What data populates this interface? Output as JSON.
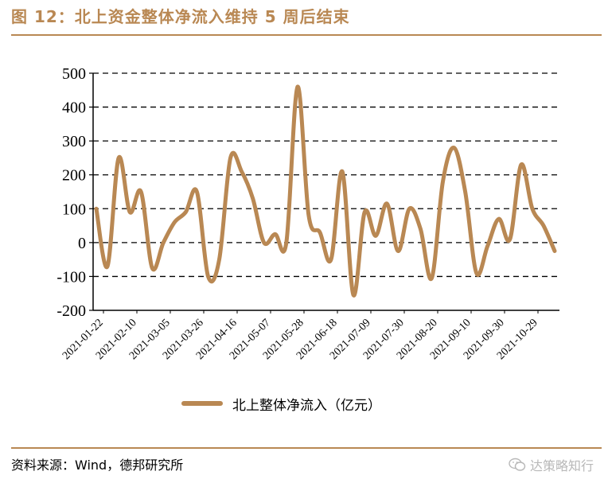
{
  "figure": {
    "title": "图 12：北上资金整体净流入维持 5 周后结束",
    "source": "资料来源：Wind，德邦研究所",
    "watermark": "达策略知行"
  },
  "colors": {
    "accent": "#B98853",
    "line": "#B98853",
    "grid": "#000000",
    "watermark": "#b8b8b8"
  },
  "icons": {
    "watermark": "wechat-icon"
  },
  "chart_data": {
    "type": "line",
    "ylim": [
      -200,
      500
    ],
    "yticks": [
      -200,
      -100,
      0,
      100,
      200,
      300,
      400,
      500
    ],
    "grid": true,
    "grid_style": "dashed horizontal",
    "legend_placement": "bottom-center",
    "x_tick_labels": [
      "2021-01-22",
      "2021-02-10",
      "2021-03-05",
      "2021-03-26",
      "2021-04-16",
      "2021-05-07",
      "2021-05-28",
      "2021-06-18",
      "2021-07-09",
      "2021-07-30",
      "2021-08-20",
      "2021-09-10",
      "2021-09-30",
      "2021-10-29"
    ],
    "series": [
      {
        "name": "北上整体净流入（亿元）",
        "values": [
          100,
          -70,
          250,
          90,
          150,
          -75,
          0,
          60,
          90,
          150,
          -100,
          -50,
          250,
          210,
          130,
          0,
          25,
          0,
          460,
          80,
          30,
          -50,
          210,
          -155,
          90,
          20,
          115,
          -25,
          100,
          40,
          -105,
          180,
          280,
          150,
          -90,
          -10,
          70,
          10,
          230,
          100,
          50,
          -25
        ]
      }
    ]
  }
}
